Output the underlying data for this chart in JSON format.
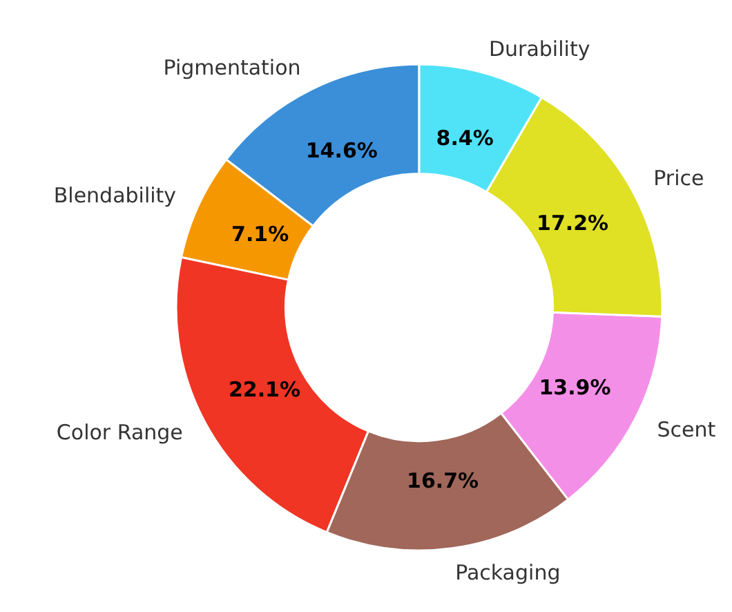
{
  "chart_data": {
    "type": "donut",
    "categories": [
      "Pigmentation",
      "Blendability",
      "Color Range",
      "Packaging",
      "Scent",
      "Price",
      "Durability"
    ],
    "values": [
      14.6,
      7.1,
      22.1,
      16.7,
      13.9,
      17.2,
      8.4
    ],
    "colors": [
      "#3a8fd8",
      "#f59700",
      "#f03525",
      "#a0675a",
      "#f48fe8",
      "#e0e024",
      "#50e3f7"
    ],
    "value_labels": [
      "14.6%",
      "7.1%",
      "22.1%",
      "16.7%",
      "13.9%",
      "17.2%",
      "8.4%"
    ]
  }
}
